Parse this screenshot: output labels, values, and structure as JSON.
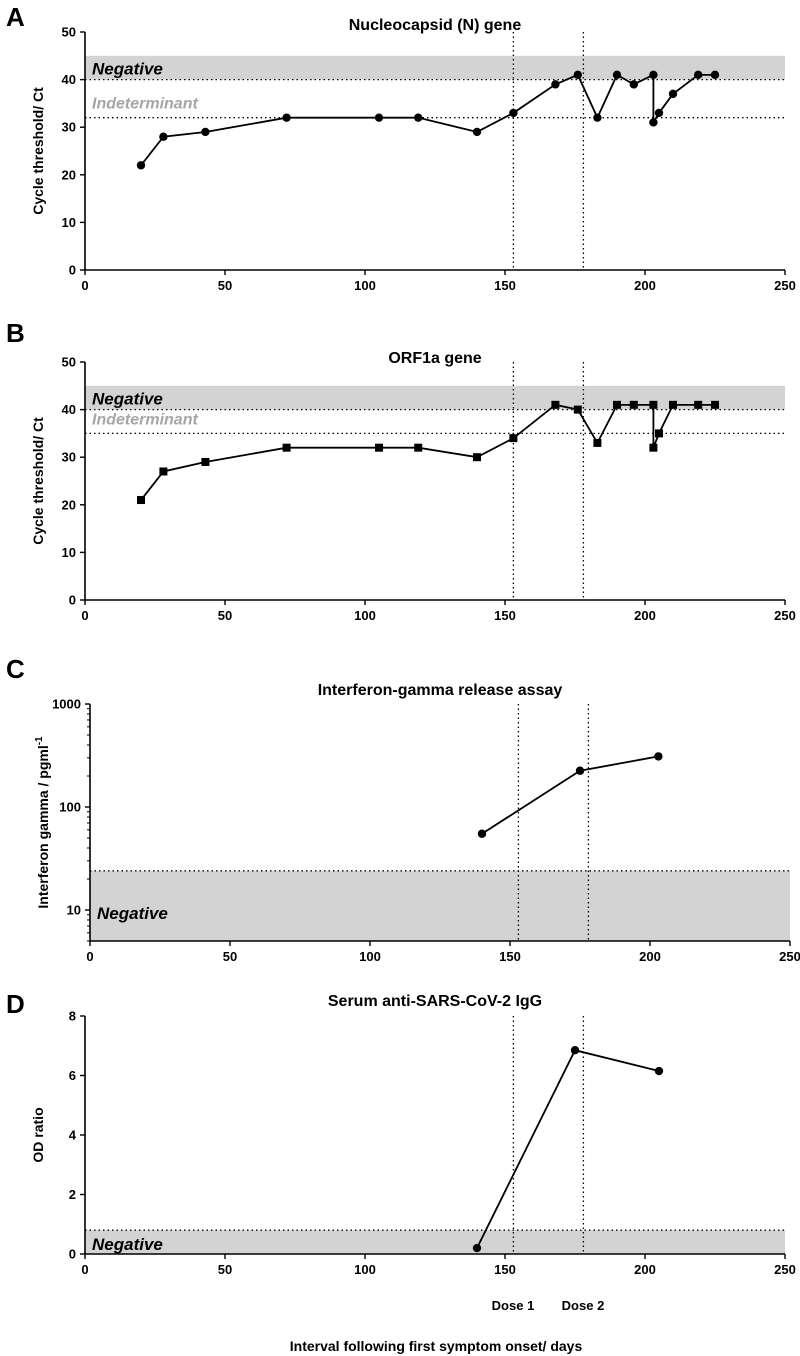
{
  "figure": {
    "shared_xlabel": "Interval following first symptom onset/ days",
    "dose_labels": [
      "Dose 1",
      "Dose 2"
    ],
    "colors": {
      "band": "#d3d3d3",
      "ink": "#000000",
      "indeterminant": "#a6a6a6"
    }
  },
  "chart_data": [
    {
      "panel": "A",
      "type": "line",
      "title": "Nucleocapsid (N) gene",
      "ylabel": "Cycle threshold/ Ct",
      "xlabel": "",
      "xlim": [
        0,
        250
      ],
      "ylim": [
        0,
        50
      ],
      "xticks": [
        0,
        50,
        100,
        150,
        200,
        250
      ],
      "yticks": [
        0,
        10,
        20,
        30,
        40,
        50
      ],
      "marker": "circle",
      "series": [
        {
          "name": "N gene Ct",
          "x": [
            20,
            28,
            43,
            72,
            105,
            119,
            140,
            153,
            168,
            176,
            183,
            190,
            196,
            203,
            203,
            205,
            210,
            219,
            225
          ],
          "y": [
            22,
            28,
            29,
            32,
            32,
            32,
            29,
            33,
            39,
            41,
            32,
            41,
            39,
            41,
            31,
            33,
            37,
            41,
            41
          ]
        }
      ],
      "negative_band": [
        40,
        45
      ],
      "negative_label": "Negative",
      "threshold_lines": [
        40,
        32
      ],
      "indeterminant_label": "Indeterminant",
      "dose_lines": [
        153,
        178
      ]
    },
    {
      "panel": "B",
      "type": "line",
      "title": "ORF1a gene",
      "ylabel": "Cycle threshold/ Ct",
      "xlabel": "",
      "xlim": [
        0,
        250
      ],
      "ylim": [
        0,
        50
      ],
      "xticks": [
        0,
        50,
        100,
        150,
        200,
        250
      ],
      "yticks": [
        0,
        10,
        20,
        30,
        40,
        50
      ],
      "marker": "square",
      "series": [
        {
          "name": "ORF1a Ct",
          "x": [
            20,
            28,
            43,
            72,
            105,
            119,
            140,
            153,
            168,
            176,
            183,
            190,
            196,
            203,
            203,
            205,
            210,
            219,
            225
          ],
          "y": [
            21,
            27,
            29,
            32,
            32,
            32,
            30,
            34,
            41,
            40,
            33,
            41,
            41,
            41,
            32,
            35,
            41,
            41,
            41
          ]
        }
      ],
      "negative_band": [
        40,
        45
      ],
      "negative_label": "Negative",
      "threshold_lines": [
        40,
        35
      ],
      "indeterminant_label": "Indeterminant",
      "dose_lines": [
        153,
        178
      ]
    },
    {
      "panel": "C",
      "type": "line",
      "title": "Interferon-gamma release assay",
      "ylabel": "Interferon gamma / pgml",
      "ylabel_sup": "-1",
      "xlabel": "",
      "yscale": "log",
      "xlim": [
        0,
        250
      ],
      "ylim": [
        5,
        1000
      ],
      "xticks": [
        0,
        50,
        100,
        150,
        200,
        250
      ],
      "yticks": [
        10,
        100,
        1000
      ],
      "marker": "circle",
      "series": [
        {
          "name": "IFN-gamma",
          "x": [
            140,
            175,
            203
          ],
          "y": [
            55,
            225,
            310
          ]
        }
      ],
      "negative_band": [
        5,
        24
      ],
      "negative_label": "Negative",
      "threshold_lines": [
        24
      ],
      "dose_lines": [
        153,
        178
      ]
    },
    {
      "panel": "D",
      "type": "line",
      "title": "Serum anti-SARS-CoV-2 IgG",
      "ylabel": "OD ratio",
      "xlabel": "",
      "xlim": [
        0,
        250
      ],
      "ylim": [
        0,
        8
      ],
      "xticks": [
        0,
        50,
        100,
        150,
        200,
        250
      ],
      "yticks": [
        0,
        2,
        4,
        6,
        8
      ],
      "marker": "circle",
      "series": [
        {
          "name": "IgG OD ratio",
          "x": [
            140,
            175,
            205
          ],
          "y": [
            0.2,
            6.85,
            6.15
          ]
        }
      ],
      "negative_band": [
        0,
        0.8
      ],
      "negative_label": "Negative",
      "threshold_lines": [
        0.8
      ],
      "dose_lines": [
        153,
        178
      ]
    }
  ]
}
